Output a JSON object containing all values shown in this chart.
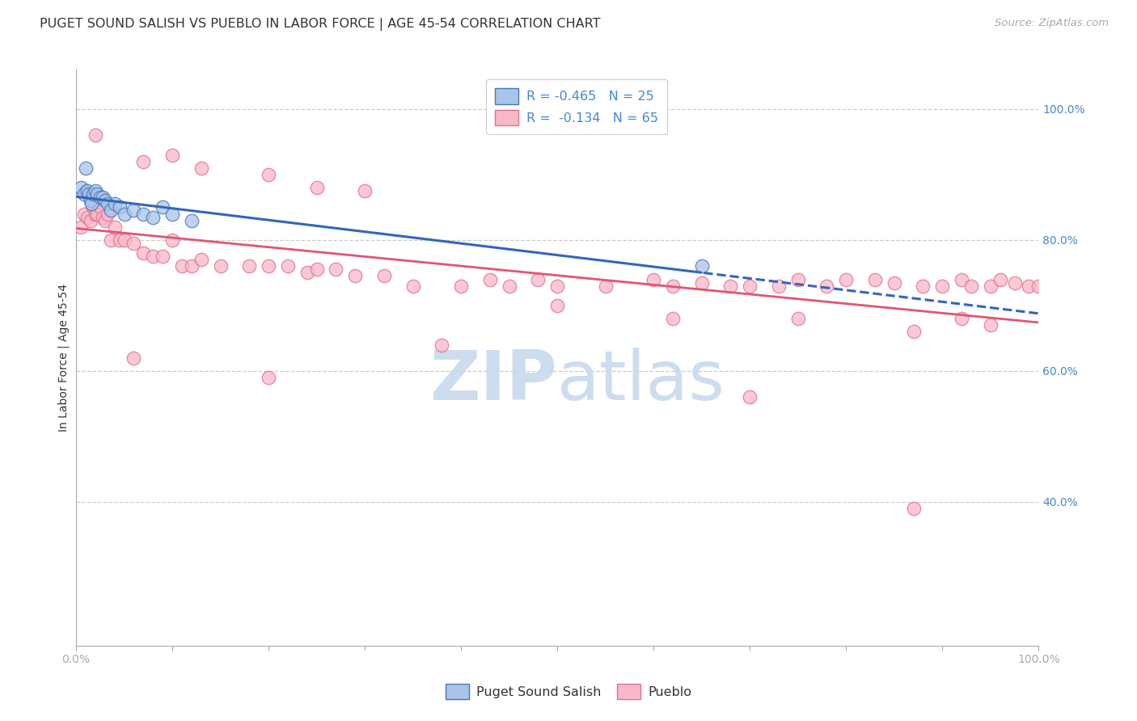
{
  "title": "PUGET SOUND SALISH VS PUEBLO IN LABOR FORCE | AGE 45-54 CORRELATION CHART",
  "source": "Source: ZipAtlas.com",
  "ylabel": "In Labor Force | Age 45-54",
  "xlim": [
    0.0,
    1.0
  ],
  "ylim": [
    0.18,
    1.06
  ],
  "yticks": [
    0.4,
    0.6,
    0.8,
    1.0
  ],
  "xtick_positions": [
    0.0,
    0.1,
    0.2,
    0.3,
    0.4,
    0.5,
    0.6,
    0.7,
    0.8,
    0.9,
    1.0
  ],
  "blue_fill": "#aac4e8",
  "blue_edge": "#4477bb",
  "pink_fill": "#f9b8c8",
  "pink_edge": "#e07090",
  "blue_line": "#3366bb",
  "pink_line": "#e05575",
  "grid_color": "#cccccc",
  "axis_color": "#aaaaaa",
  "right_tick_color": "#4488cc",
  "title_color": "#333333",
  "watermark_color": "#c5d8ee",
  "title_fontsize": 11.5,
  "tick_fontsize": 10,
  "source_fontsize": 9.5,
  "ylabel_fontsize": 10,
  "puget_x": [
    0.005,
    0.008,
    0.01,
    0.012,
    0.013,
    0.015,
    0.016,
    0.018,
    0.02,
    0.022,
    0.025,
    0.028,
    0.03,
    0.033,
    0.036,
    0.04,
    0.045,
    0.05,
    0.06,
    0.07,
    0.08,
    0.09,
    0.1,
    0.12,
    0.65
  ],
  "puget_y": [
    0.88,
    0.87,
    0.91,
    0.875,
    0.87,
    0.86,
    0.855,
    0.87,
    0.875,
    0.87,
    0.865,
    0.865,
    0.86,
    0.855,
    0.845,
    0.855,
    0.85,
    0.84,
    0.845,
    0.84,
    0.835,
    0.85,
    0.84,
    0.83,
    0.76
  ],
  "pueblo_x": [
    0.005,
    0.008,
    0.01,
    0.012,
    0.015,
    0.018,
    0.02,
    0.022,
    0.025,
    0.028,
    0.03,
    0.033,
    0.036,
    0.04,
    0.045,
    0.05,
    0.06,
    0.07,
    0.08,
    0.09,
    0.1,
    0.11,
    0.12,
    0.13,
    0.15,
    0.18,
    0.2,
    0.22,
    0.24,
    0.25,
    0.27,
    0.29,
    0.32,
    0.35,
    0.4,
    0.43,
    0.45,
    0.48,
    0.5,
    0.55,
    0.6,
    0.62,
    0.65,
    0.68,
    0.7,
    0.73,
    0.75,
    0.78,
    0.8,
    0.83,
    0.85,
    0.88,
    0.9,
    0.92,
    0.93,
    0.95,
    0.96,
    0.975,
    0.99,
    1.0,
    0.06,
    0.2,
    0.38,
    0.7,
    0.87
  ],
  "pueblo_y": [
    0.82,
    0.84,
    0.875,
    0.835,
    0.83,
    0.85,
    0.84,
    0.84,
    0.85,
    0.835,
    0.83,
    0.84,
    0.8,
    0.82,
    0.8,
    0.8,
    0.795,
    0.78,
    0.775,
    0.775,
    0.8,
    0.76,
    0.76,
    0.77,
    0.76,
    0.76,
    0.76,
    0.76,
    0.75,
    0.755,
    0.755,
    0.745,
    0.745,
    0.73,
    0.73,
    0.74,
    0.73,
    0.74,
    0.73,
    0.73,
    0.74,
    0.73,
    0.735,
    0.73,
    0.73,
    0.73,
    0.74,
    0.73,
    0.74,
    0.74,
    0.735,
    0.73,
    0.73,
    0.74,
    0.73,
    0.73,
    0.74,
    0.735,
    0.73,
    0.73,
    0.62,
    0.59,
    0.64,
    0.56,
    0.39
  ],
  "pueblo_outliers_x": [
    0.02,
    0.07,
    0.1,
    0.13,
    0.2,
    0.25,
    0.3,
    0.5,
    0.62,
    0.75,
    0.87,
    0.92,
    0.95
  ],
  "pueblo_outliers_y": [
    0.96,
    0.92,
    0.93,
    0.91,
    0.9,
    0.88,
    0.875,
    0.7,
    0.68,
    0.68,
    0.66,
    0.68,
    0.67
  ]
}
